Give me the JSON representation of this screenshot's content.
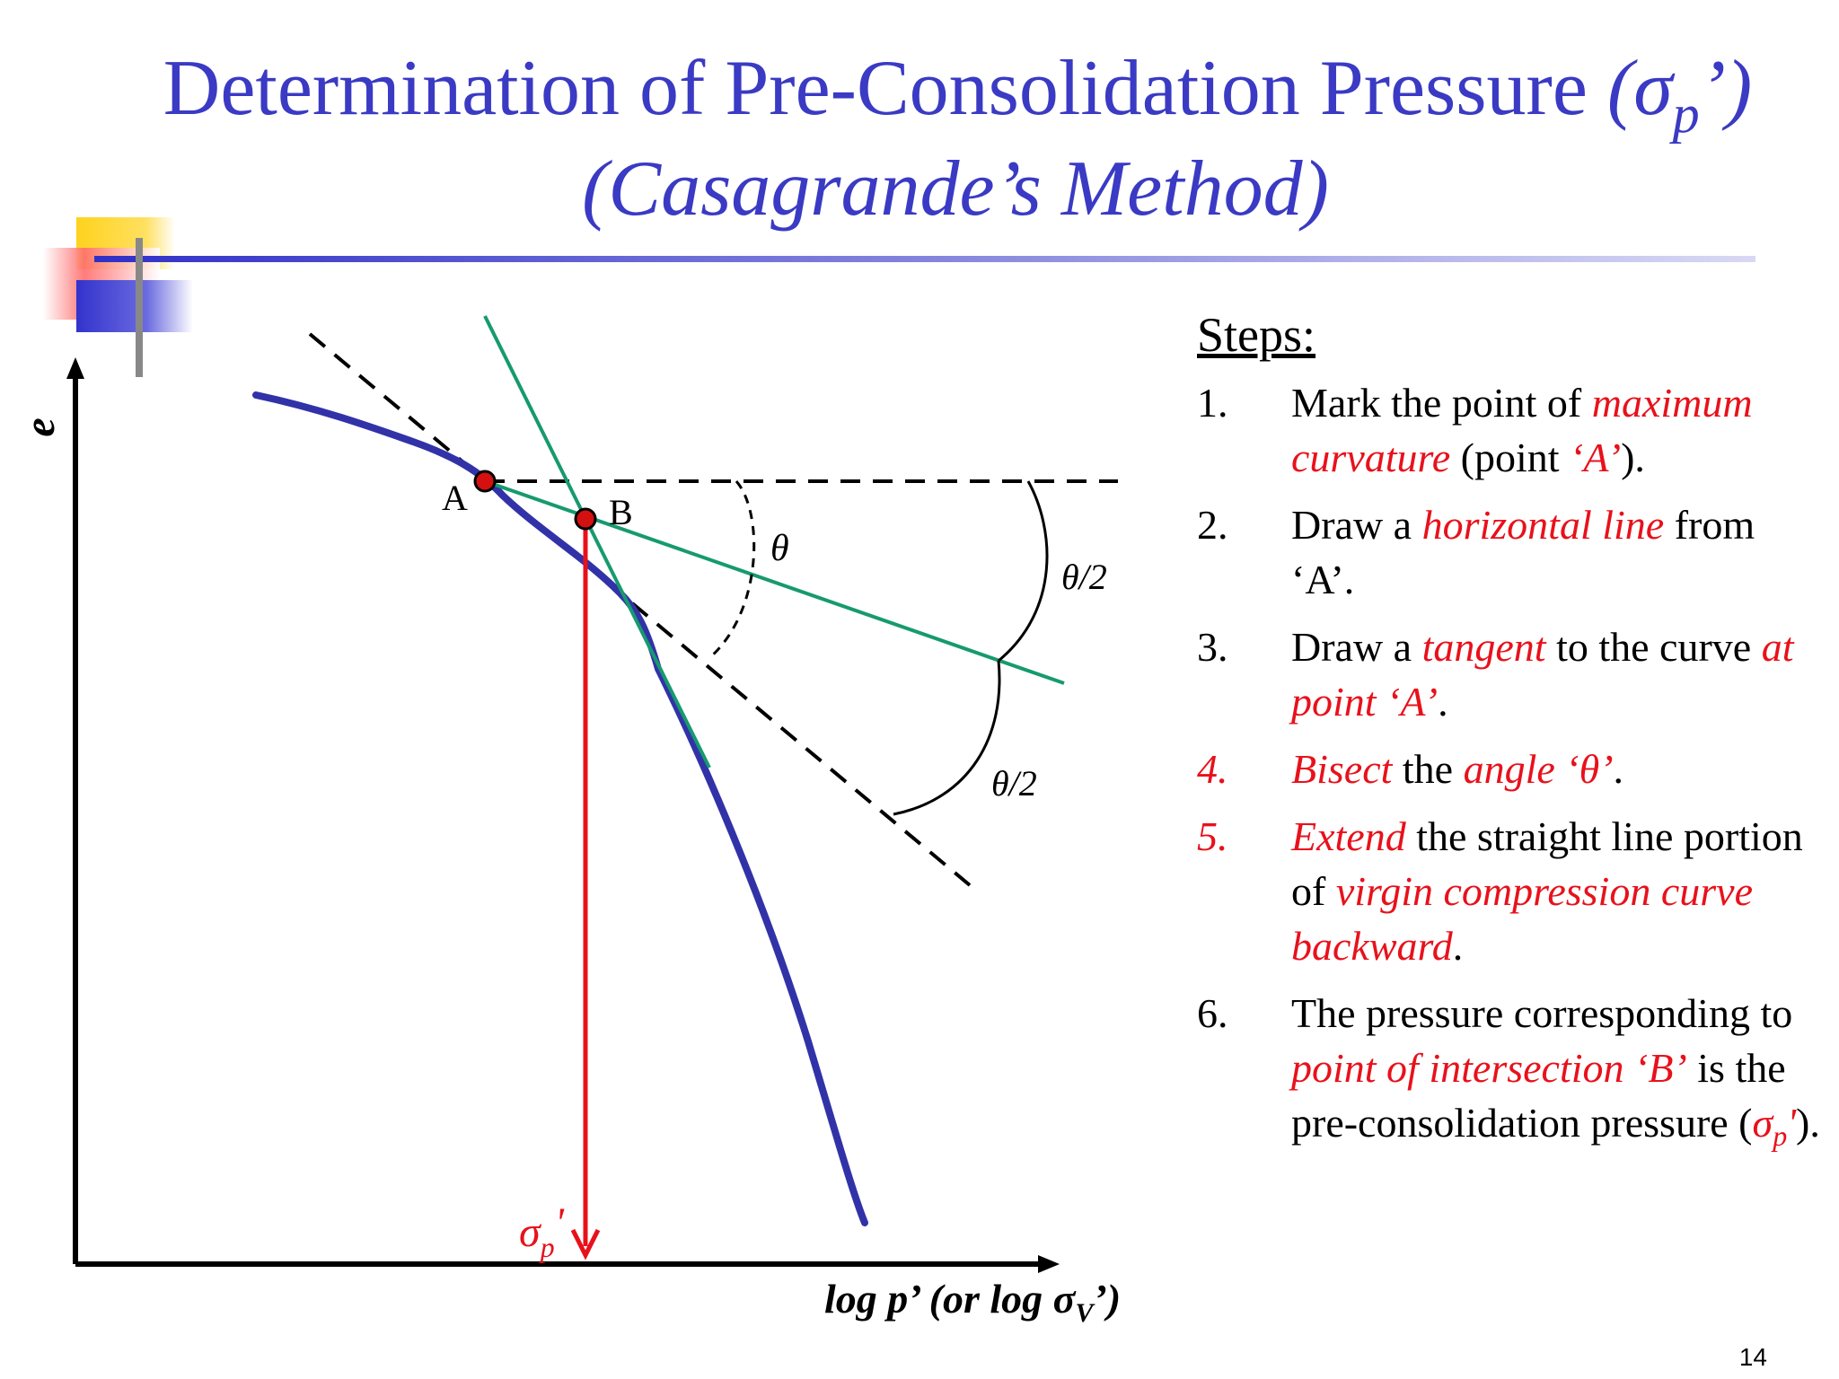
{
  "title": {
    "line1_main": "Determination of Pre-Consolidation Pressure ",
    "line1_open": "(σ",
    "line1_sub": "p",
    "line1_close": "’)",
    "line2": "(Casagrande’s Method)"
  },
  "diagram": {
    "y_axis_label": "e",
    "x_axis_label_main": "log p’ (or log σ",
    "x_axis_label_sub": "V",
    "x_axis_label_close": "’)",
    "point_a_label": "A",
    "point_b_label": "B",
    "theta_label": "θ",
    "half_theta_label_upper": "θ/2",
    "half_theta_label_lower": "θ/2",
    "sigma_label_main": "σ",
    "sigma_label_sub": "p",
    "sigma_label_prime": "'",
    "colors": {
      "curve": "#3232a8",
      "tangent_lines": "#169a6e",
      "pressure_line": "#e8111b",
      "points": "#d41010",
      "dashed": "#000000",
      "title": "#3a3ac4"
    }
  },
  "steps": {
    "heading": "Steps:",
    "s1": {
      "num": "1.",
      "t1": "Mark the point of ",
      "h1": "maximum curvature",
      "t2": " (point ",
      "h2": "‘A’",
      "t3": ")."
    },
    "s2": {
      "num": "2.",
      "t1": "Draw a ",
      "h1": "horizontal line",
      "t2": " from ‘A’."
    },
    "s3": {
      "num": "3.",
      "t1": "Draw a ",
      "h1": "tangent",
      "t2": " to the curve ",
      "h2": "at point ‘A’",
      "t3": "."
    },
    "s4": {
      "num": "4.",
      "h1": "Bisect",
      "t1": " the ",
      "h2": "angle ‘θ’",
      "t2": "."
    },
    "s5": {
      "num": "5.",
      "h1": "Extend",
      "t1": " the straight line portion of ",
      "h2": "virgin compression curve backward",
      "t2": "."
    },
    "s6": {
      "num": "6.",
      "t1": "The pressure corresponding to ",
      "h1": "point of intersection ‘B’",
      "t2": " is the pre-consolidation pressure (",
      "h2a": "σ",
      "h2sub": "p",
      "h2b": "'",
      "t3": ")."
    }
  },
  "page_number": "14"
}
